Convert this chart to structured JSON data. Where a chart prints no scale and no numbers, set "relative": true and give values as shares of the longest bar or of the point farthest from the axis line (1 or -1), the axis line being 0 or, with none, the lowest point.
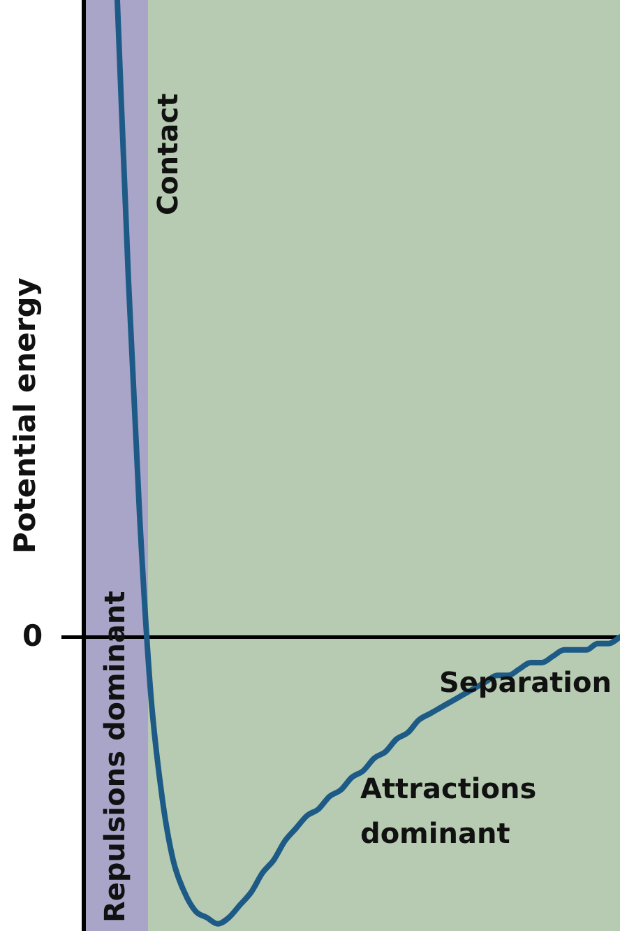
{
  "chart_data": {
    "type": "line",
    "relative": true,
    "ylabel": "Potential energy",
    "xlabel": "Separation",
    "categories": [
      null,
      null,
      null,
      null,
      null,
      null,
      null,
      null,
      null,
      null,
      null,
      null,
      null,
      null,
      null,
      null,
      null,
      null,
      null,
      null,
      null,
      null,
      null,
      null,
      null,
      null,
      null,
      null,
      null,
      null,
      null,
      null,
      null,
      null,
      null,
      null,
      null,
      null,
      null,
      null,
      null,
      null,
      null,
      null,
      null,
      null,
      null,
      null,
      null
    ],
    "series": [
      {
        "color": "#1d5b86",
        "values": [
          null,
          null,
          null,
          1,
          0.56,
          0.19,
          -0.09,
          -0.25,
          -0.35,
          -0.4,
          -0.43,
          -0.44,
          -0.45,
          -0.44,
          -0.42,
          -0.4,
          -0.37,
          -0.35,
          -0.32,
          -0.3,
          -0.28,
          -0.27,
          -0.25,
          -0.24,
          -0.22,
          -0.21,
          -0.19,
          -0.18,
          -0.16,
          -0.15,
          -0.13,
          -0.12,
          -0.11,
          -0.1,
          -0.09,
          -0.08,
          -0.07,
          -0.06,
          -0.06,
          -0.05,
          -0.04,
          -0.04,
          -0.03,
          -0.02,
          -0.02,
          -0.02,
          -0.01,
          -0.01,
          0
        ]
      }
    ],
    "ref_lines": [
      {
        "axis": "y",
        "value": 0,
        "label": "0",
        "color": "#000000"
      }
    ],
    "annotations": [
      "Contact",
      "Repulsions dominant",
      "Attractions dominant"
    ],
    "marker": "none",
    "line_style": "solid",
    "legend": false
  }
}
